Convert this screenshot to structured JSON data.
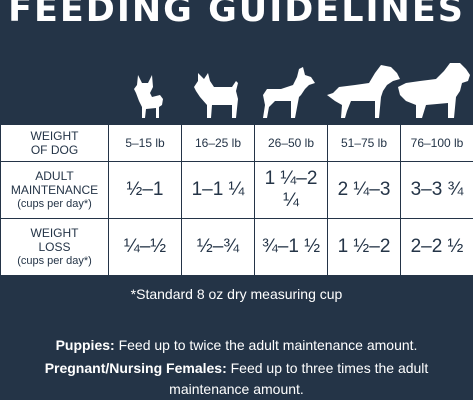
{
  "title": "FEEDING GUIDELINES",
  "icons": [
    "chihuahua-icon",
    "terrier-icon",
    "boxer-icon",
    "retriever-icon",
    "bernese-mountain-dog-icon"
  ],
  "table": {
    "header_label_line1": "WEIGHT",
    "header_label_line2": "OF DOG",
    "weights": [
      "5–15 lb",
      "16–25 lb",
      "26–50 lb",
      "51–75 lb",
      "76–100 lb"
    ],
    "rows": [
      {
        "label_line1": "ADULT",
        "label_line2": "MAINTENANCE",
        "unit": "(cups per day*)",
        "values": [
          "½–1",
          "1–1 ¼",
          "1 ¼–2 ¼",
          "2 ¼–3",
          "3–3 ¾"
        ]
      },
      {
        "label_line1": "WEIGHT",
        "label_line2": "LOSS",
        "unit": "(cups per day*)",
        "values": [
          "¼–½",
          "½–¾",
          "¾–1 ½",
          "1 ½–2",
          "2–2 ½"
        ]
      }
    ]
  },
  "footnote": "*Standard 8 oz dry measuring cup",
  "puppies_label": "Puppies:",
  "puppies_text": "Feed up to twice the adult maintenance amount.",
  "pregnant_label": "Pregnant/Nursing Females:",
  "pregnant_text_line1": "Feed up to three times the adult",
  "pregnant_text_line2": "maintenance amount."
}
